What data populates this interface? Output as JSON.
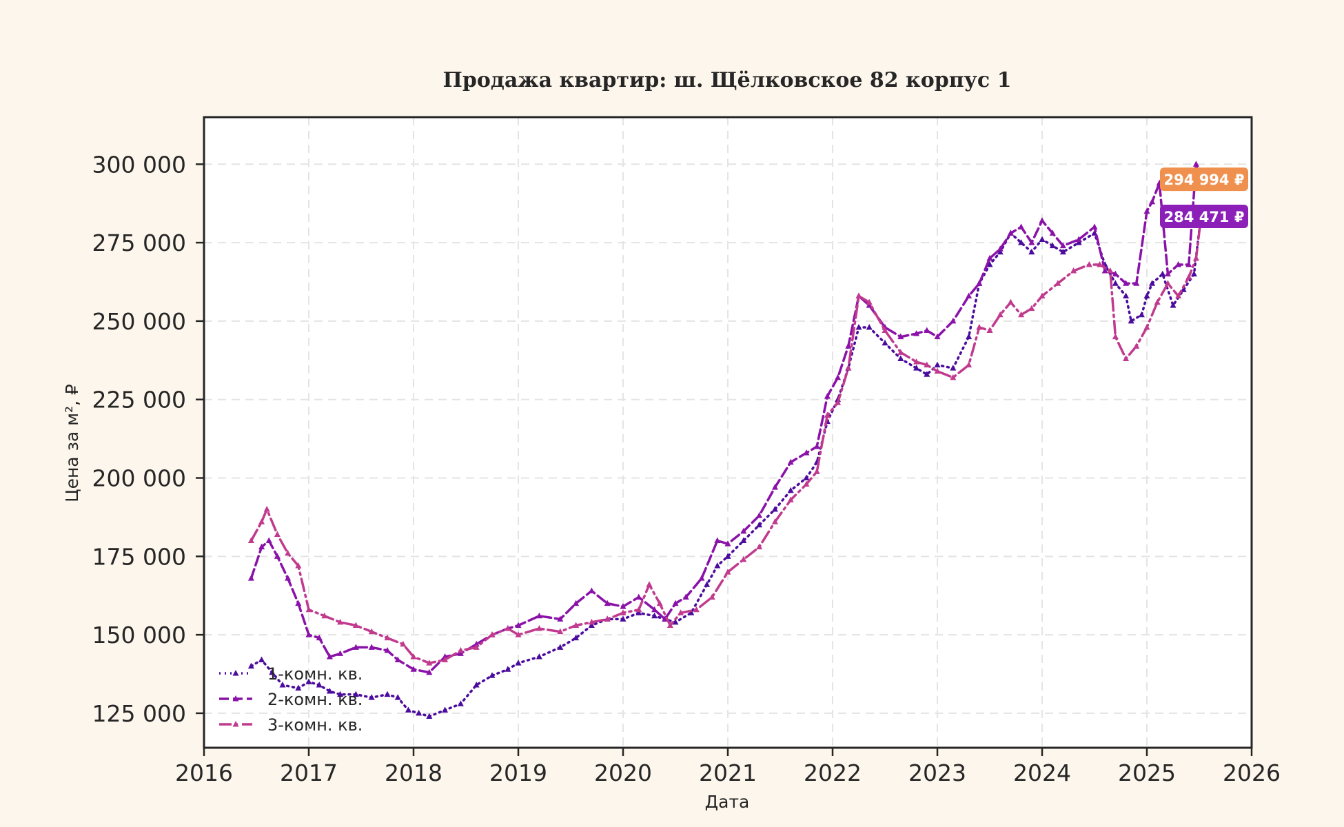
{
  "chart_data": {
    "type": "line",
    "title": "Продажа квартир: ш. Щёлковское 82 корпус 1",
    "xlabel": "Дата",
    "ylabel": "Цена за м², ₽",
    "xlim": [
      2016.0,
      2026.0
    ],
    "ylim": [
      114000,
      315000
    ],
    "x_ticks": [
      2016,
      2017,
      2018,
      2019,
      2020,
      2021,
      2022,
      2023,
      2024,
      2025,
      2026
    ],
    "x_tick_labels": [
      "2016",
      "2017",
      "2018",
      "2019",
      "2020",
      "2021",
      "2022",
      "2023",
      "2024",
      "2025",
      "2026"
    ],
    "y_ticks": [
      125000,
      150000,
      175000,
      200000,
      225000,
      250000,
      275000,
      300000
    ],
    "y_tick_labels": [
      "125 000",
      "150 000",
      "175 000",
      "200 000",
      "225 000",
      "250 000",
      "275 000",
      "300 000"
    ],
    "grid": true,
    "legend_position": "bottom-left",
    "series": [
      {
        "name": "1-комн. кв.",
        "color": "#4b0c9e",
        "style": "dotted",
        "marker": "triangle",
        "x": [
          2016.45,
          2016.55,
          2016.65,
          2016.75,
          2016.9,
          2017.0,
          2017.1,
          2017.2,
          2017.3,
          2017.45,
          2017.6,
          2017.75,
          2017.85,
          2017.95,
          2018.05,
          2018.15,
          2018.3,
          2018.45,
          2018.6,
          2018.75,
          2018.9,
          2019.0,
          2019.2,
          2019.4,
          2019.55,
          2019.7,
          2019.85,
          2020.0,
          2020.15,
          2020.3,
          2020.4,
          2020.5,
          2020.65,
          2020.8,
          2020.9,
          2021.0,
          2021.15,
          2021.3,
          2021.45,
          2021.6,
          2021.75,
          2021.85,
          2021.95,
          2022.05,
          2022.15,
          2022.25,
          2022.35,
          2022.5,
          2022.65,
          2022.8,
          2022.9,
          2023.0,
          2023.15,
          2023.3,
          2023.4,
          2023.5,
          2023.6,
          2023.7,
          2023.8,
          2023.9,
          2024.0,
          2024.1,
          2024.2,
          2024.35,
          2024.5,
          2024.6,
          2024.7,
          2024.8,
          2024.85,
          2024.95,
          2025.0,
          2025.05,
          2025.15,
          2025.25,
          2025.35,
          2025.45,
          2025.52
        ],
        "y": [
          140000,
          142000,
          138000,
          134000,
          133000,
          135000,
          134000,
          132000,
          131000,
          131000,
          130000,
          131000,
          130000,
          126000,
          125000,
          124000,
          126000,
          128000,
          134000,
          137000,
          139000,
          141000,
          143000,
          146000,
          149000,
          153000,
          155000,
          155000,
          157000,
          156000,
          155000,
          154000,
          157000,
          166000,
          172000,
          175000,
          180000,
          185000,
          190000,
          196000,
          200000,
          205000,
          218000,
          225000,
          235000,
          248000,
          248000,
          243000,
          238000,
          235000,
          233000,
          236000,
          235000,
          245000,
          262000,
          268000,
          272000,
          278000,
          275000,
          272000,
          276000,
          274000,
          272000,
          275000,
          278000,
          268000,
          262000,
          258000,
          250000,
          252000,
          258000,
          262000,
          265000,
          255000,
          260000,
          265000,
          284471
        ]
      },
      {
        "name": "2-комн. кв.",
        "color": "#8a12a8",
        "style": "dashed",
        "marker": "triangle",
        "x": [
          2016.45,
          2016.55,
          2016.62,
          2016.7,
          2016.8,
          2016.9,
          2017.0,
          2017.1,
          2017.2,
          2017.3,
          2017.45,
          2017.6,
          2017.75,
          2017.85,
          2018.0,
          2018.15,
          2018.3,
          2018.45,
          2018.6,
          2018.75,
          2018.9,
          2019.0,
          2019.2,
          2019.4,
          2019.55,
          2019.7,
          2019.85,
          2020.0,
          2020.15,
          2020.3,
          2020.4,
          2020.5,
          2020.6,
          2020.75,
          2020.9,
          2021.0,
          2021.15,
          2021.3,
          2021.45,
          2021.6,
          2021.75,
          2021.85,
          2021.95,
          2022.05,
          2022.15,
          2022.25,
          2022.35,
          2022.5,
          2022.65,
          2022.8,
          2022.9,
          2023.0,
          2023.15,
          2023.3,
          2023.4,
          2023.5,
          2023.6,
          2023.7,
          2023.8,
          2023.9,
          2024.0,
          2024.1,
          2024.2,
          2024.35,
          2024.5,
          2024.6,
          2024.7,
          2024.8,
          2024.9,
          2025.0,
          2025.05,
          2025.12,
          2025.2,
          2025.3,
          2025.4,
          2025.47,
          2025.52
        ],
        "y": [
          168000,
          178000,
          180000,
          175000,
          168000,
          160000,
          150000,
          149000,
          143000,
          144000,
          146000,
          146000,
          145000,
          142000,
          139000,
          138000,
          143000,
          144000,
          147000,
          150000,
          152000,
          153000,
          156000,
          155000,
          160000,
          164000,
          160000,
          159000,
          162000,
          158000,
          155000,
          160000,
          162000,
          168000,
          180000,
          179000,
          183000,
          188000,
          197000,
          205000,
          208000,
          210000,
          226000,
          232000,
          242000,
          258000,
          255000,
          248000,
          245000,
          246000,
          247000,
          245000,
          250000,
          258000,
          262000,
          270000,
          273000,
          278000,
          280000,
          275000,
          282000,
          278000,
          274000,
          276000,
          280000,
          266000,
          265000,
          262000,
          262000,
          285000,
          288000,
          294000,
          265000,
          268000,
          268000,
          300000,
          294994
        ]
      },
      {
        "name": "3-комн. кв.",
        "color": "#c03a8e",
        "style": "dashdot",
        "marker": "triangle",
        "x": [
          2016.45,
          2016.55,
          2016.6,
          2016.7,
          2016.8,
          2016.9,
          2017.0,
          2017.15,
          2017.3,
          2017.45,
          2017.6,
          2017.75,
          2017.9,
          2018.0,
          2018.15,
          2018.3,
          2018.45,
          2018.6,
          2018.75,
          2018.9,
          2019.0,
          2019.2,
          2019.4,
          2019.55,
          2019.7,
          2019.85,
          2020.0,
          2020.15,
          2020.25,
          2020.35,
          2020.45,
          2020.55,
          2020.7,
          2020.85,
          2021.0,
          2021.15,
          2021.3,
          2021.45,
          2021.6,
          2021.75,
          2021.85,
          2021.95,
          2022.05,
          2022.15,
          2022.25,
          2022.35,
          2022.5,
          2022.65,
          2022.8,
          2022.9,
          2023.0,
          2023.15,
          2023.3,
          2023.4,
          2023.5,
          2023.6,
          2023.7,
          2023.8,
          2023.9,
          2024.0,
          2024.15,
          2024.3,
          2024.45,
          2024.55,
          2024.65,
          2024.7,
          2024.8,
          2024.9,
          2025.0,
          2025.1,
          2025.2,
          2025.3,
          2025.4,
          2025.47,
          2025.52
        ],
        "y": [
          180000,
          186000,
          190000,
          182000,
          176000,
          172000,
          158000,
          156000,
          154000,
          153000,
          151000,
          149000,
          147000,
          143000,
          141000,
          142000,
          145000,
          146000,
          150000,
          152000,
          150000,
          152000,
          151000,
          153000,
          154000,
          155000,
          157000,
          158000,
          166000,
          160000,
          153000,
          157000,
          158000,
          162000,
          170000,
          174000,
          178000,
          186000,
          193000,
          198000,
          202000,
          220000,
          224000,
          235000,
          258000,
          256000,
          247000,
          240000,
          237000,
          236000,
          234000,
          232000,
          236000,
          248000,
          247000,
          252000,
          256000,
          252000,
          254000,
          258000,
          262000,
          266000,
          268000,
          268000,
          266000,
          245000,
          238000,
          242000,
          248000,
          256000,
          262000,
          258000,
          264000,
          270000,
          284000
        ]
      }
    ],
    "annotations": [
      {
        "text": "294 994 ₽",
        "y": 294994,
        "color": "#f0904f"
      },
      {
        "text": "284 471 ₽",
        "y": 284471,
        "color": "#8b1fb8"
      }
    ]
  }
}
